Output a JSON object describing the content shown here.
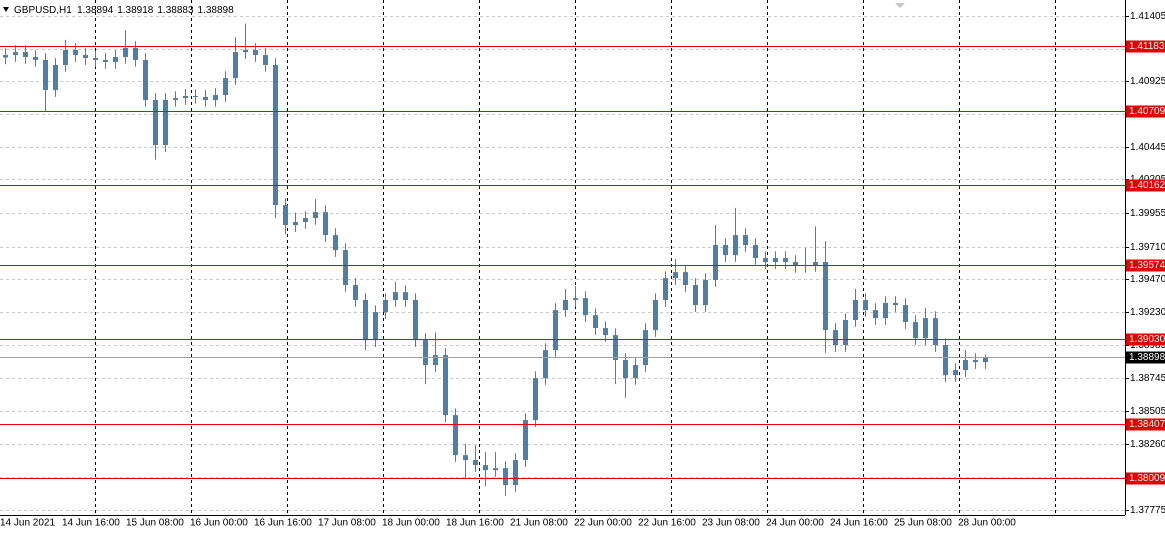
{
  "chart_data": {
    "type": "candlestick",
    "title": "GBPUSD,H1",
    "header_values": [
      1.38894,
      1.38918,
      1.38883,
      1.38898
    ],
    "color": "#4f7fa6",
    "level_color": "#e00000",
    "ylim": [
      1.37775,
      1.41405
    ],
    "yticks": [
      1.41405,
      1.41165,
      1.40925,
      1.40685,
      1.40445,
      1.40205,
      1.39955,
      {
        "value": 1.3971,
        "label": "1.39710"
      },
      {
        "value": 1.3947,
        "label": "1.39470"
      },
      {
        "value": 1.3923,
        "label": "1.39230"
      },
      1.38985,
      1.38745,
      1.38505,
      {
        "value": 1.3826,
        "label": "1.38260"
      },
      {
        "value": 1.3802,
        "label": "1.38020"
      },
      1.37775
    ],
    "grid": true,
    "levels": [
      1.41183,
      1.40709,
      1.40162,
      1.39574,
      {
        "value": 1.3903,
        "label": "1.39030"
      },
      1.38407,
      1.38009
    ],
    "current_price": 1.38898,
    "x_labels": [
      "14 Jun 2021",
      "14 Jun 16:00",
      "15 Jun 08:00",
      "16 Jun 00:00",
      "16 Jun 16:00",
      "17 Jun 08:00",
      "18 Jun 00:00",
      "18 Jun 16:00",
      "21 Jun 08:00",
      "22 Jun 00:00",
      "22 Jun 16:00",
      "23 Jun 08:00",
      "24 Jun 00:00",
      "24 Jun 16:00",
      "25 Jun 08:00",
      "28 Jun 00:00"
    ],
    "open": [
      1.411,
      1.41118,
      1.4114,
      1.41104,
      1.41082,
      1.40861,
      1.41045,
      1.41155,
      1.41118,
      1.41096,
      1.41082,
      1.41067,
      1.41104,
      1.4117,
      1.41082,
      1.40788,
      1.40457,
      1.40788,
      1.40802,
      1.40817,
      1.4081,
      1.40788,
      1.40824,
      1.40949,
      1.4114,
      1.41155,
      1.41118,
      1.41045,
      1.40016,
      1.39869,
      1.39891,
      1.3992,
      1.39964,
      1.39795,
      1.39685,
      1.39428,
      1.39318,
      1.39024,
      1.39229,
      1.39318,
      1.39376,
      1.39318,
      1.39024,
      1.3884,
      1.38913,
      1.38472,
      1.38178,
      1.38142,
      1.38105,
      1.38068,
      1.38083,
      1.37958,
      1.38142,
      1.38436,
      1.38744,
      1.3895,
      1.39244,
      1.39318,
      1.39332,
      1.39207,
      1.39112,
      1.3906,
      1.38877,
      1.38744,
      1.3884,
      1.39097,
      1.39318,
      1.39479,
      1.39523,
      1.39428,
      1.39281,
      1.39465,
      1.39722,
      1.39648,
      1.39795,
      1.39722,
      1.39626,
      1.39597,
      1.39626,
      1.39597,
      1.39568,
      1.39575,
      1.39597,
      1.39097,
      1.38987,
      1.39171,
      1.39318,
      1.39244,
      1.39185,
      1.39296,
      1.39281,
      1.39156,
      1.39038,
      1.39185,
      1.38987,
      1.38766,
      1.38803,
      1.38877,
      1.38862
    ],
    "high": [
      1.41168,
      1.4119,
      1.4119,
      1.41154,
      1.41132,
      1.41095,
      1.4123,
      1.41205,
      1.41168,
      1.41146,
      1.41132,
      1.41154,
      1.413,
      1.4122,
      1.41132,
      1.40838,
      1.40838,
      1.40852,
      1.40867,
      1.40867,
      1.4086,
      1.40874,
      1.40999,
      1.4125,
      1.4135,
      1.41205,
      1.41168,
      1.41095,
      1.40066,
      1.3996,
      1.3997,
      1.4006,
      1.40014,
      1.39845,
      1.39735,
      1.39478,
      1.39368,
      1.39279,
      1.39368,
      1.3945,
      1.39426,
      1.39368,
      1.39074,
      1.3908,
      1.38963,
      1.38522,
      1.3826,
      1.3825,
      1.382,
      1.382,
      1.38133,
      1.38192,
      1.38486,
      1.38794,
      1.39,
      1.39294,
      1.394,
      1.3942,
      1.39382,
      1.39257,
      1.39162,
      1.3911,
      1.38927,
      1.3889,
      1.39147,
      1.39368,
      1.39529,
      1.3962,
      1.39573,
      1.39478,
      1.39515,
      1.3987,
      1.39772,
      1.39995,
      1.39845,
      1.39772,
      1.39676,
      1.39676,
      1.39676,
      1.39647,
      1.397,
      1.3986,
      1.3975,
      1.39147,
      1.39221,
      1.394,
      1.39368,
      1.39294,
      1.39346,
      1.39346,
      1.39331,
      1.39206,
      1.3926,
      1.39235,
      1.39037,
      1.38853,
      1.3895,
      1.38927,
      1.38918
    ],
    "low": [
      1.4105,
      1.41068,
      1.41054,
      1.41032,
      1.407,
      1.40811,
      1.40995,
      1.41068,
      1.41046,
      1.41032,
      1.41017,
      1.41017,
      1.41054,
      1.41032,
      1.40738,
      1.4035,
      1.40407,
      1.40738,
      1.40752,
      1.4076,
      1.40738,
      1.40738,
      1.40774,
      1.40899,
      1.4109,
      1.41068,
      1.40995,
      1.3992,
      1.398,
      1.39819,
      1.39841,
      1.3987,
      1.39745,
      1.39635,
      1.39378,
      1.39268,
      1.3895,
      1.38974,
      1.39179,
      1.39268,
      1.39268,
      1.38974,
      1.387,
      1.3879,
      1.38422,
      1.38128,
      1.38,
      1.38055,
      1.3795,
      1.38018,
      1.3788,
      1.37908,
      1.38092,
      1.38386,
      1.38694,
      1.389,
      1.39194,
      1.39268,
      1.39157,
      1.39062,
      1.3901,
      1.387,
      1.386,
      1.38694,
      1.3879,
      1.39047,
      1.39268,
      1.39429,
      1.39378,
      1.39231,
      1.39231,
      1.39415,
      1.39598,
      1.39598,
      1.39672,
      1.39576,
      1.39547,
      1.39547,
      1.39547,
      1.39518,
      1.39518,
      1.39525,
      1.3893,
      1.38937,
      1.38937,
      1.39121,
      1.39194,
      1.39135,
      1.39135,
      1.39231,
      1.39106,
      1.38988,
      1.38988,
      1.38937,
      1.38716,
      1.38716,
      1.38753,
      1.38812,
      1.38812
    ],
    "close": [
      1.41118,
      1.4114,
      1.41104,
      1.41082,
      1.40861,
      1.41045,
      1.41155,
      1.41118,
      1.41096,
      1.41082,
      1.41067,
      1.41104,
      1.4117,
      1.41082,
      1.40788,
      1.40457,
      1.40788,
      1.40802,
      1.40817,
      1.4081,
      1.40788,
      1.40824,
      1.40949,
      1.4114,
      1.41155,
      1.41118,
      1.41045,
      1.40016,
      1.39869,
      1.39891,
      1.3992,
      1.39964,
      1.39795,
      1.39685,
      1.39428,
      1.39318,
      1.39024,
      1.39229,
      1.39318,
      1.39376,
      1.39318,
      1.39024,
      1.3884,
      1.38913,
      1.38472,
      1.38178,
      1.38142,
      1.38105,
      1.38068,
      1.38083,
      1.37958,
      1.38142,
      1.38436,
      1.38744,
      1.3895,
      1.39244,
      1.39318,
      1.39332,
      1.39207,
      1.39112,
      1.3906,
      1.38877,
      1.38744,
      1.3884,
      1.39097,
      1.39318,
      1.39479,
      1.39523,
      1.39428,
      1.39281,
      1.39465,
      1.39722,
      1.39648,
      1.39795,
      1.39722,
      1.39626,
      1.39597,
      1.39626,
      1.39597,
      1.39568,
      1.39575,
      1.39597,
      1.39097,
      1.38987,
      1.39171,
      1.39318,
      1.39244,
      1.39185,
      1.39296,
      1.39281,
      1.39156,
      1.39038,
      1.39185,
      1.38987,
      1.38766,
      1.38803,
      1.38877,
      1.38862,
      1.38898
    ]
  }
}
